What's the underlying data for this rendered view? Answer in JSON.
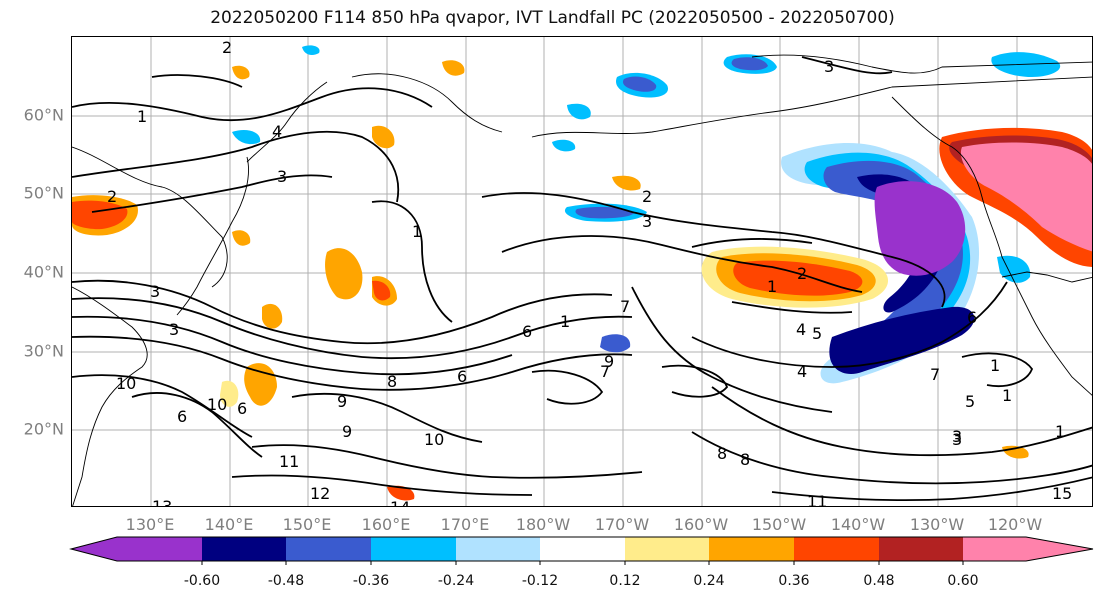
{
  "title": "2022050200 F114 850 hPa qvapor, IVT Landfall PC (2022050500 - 2022050700)",
  "lat_labels": [
    "60°N",
    "50°N",
    "40°N",
    "30°N",
    "20°N"
  ],
  "lon_labels": [
    "130°E",
    "140°E",
    "150°E",
    "160°E",
    "170°E",
    "180°W",
    "170°W",
    "160°W",
    "150°W",
    "140°W",
    "130°W",
    "120°W"
  ],
  "contour_labels": [
    "2",
    "3",
    "4",
    "3",
    "2",
    "3",
    "1",
    "3",
    "2",
    "3",
    "1",
    "2",
    "1",
    "3",
    "5",
    "4",
    "6",
    "7",
    "6",
    "1",
    "7",
    "8",
    "9",
    "7",
    "4",
    "5",
    "6",
    "1",
    "10",
    "8",
    "6",
    "9",
    "10",
    "9",
    "6",
    "10",
    "11",
    "12",
    "13",
    "14",
    "8",
    "11",
    "3",
    "1",
    "1",
    "15"
  ],
  "colorbar": {
    "colors": [
      "#9932cc",
      "#000080",
      "#3a5bcf",
      "#00bfff",
      "#b0e2ff",
      "#ffffff",
      "#ffec8b",
      "#ffa500",
      "#ff4500",
      "#b22222",
      "#ff82ab"
    ],
    "tick_labels": [
      "-0.60",
      "-0.48",
      "-0.36",
      "-0.24",
      "-0.12",
      "0.12",
      "0.24",
      "0.36",
      "0.48",
      "0.60"
    ]
  }
}
